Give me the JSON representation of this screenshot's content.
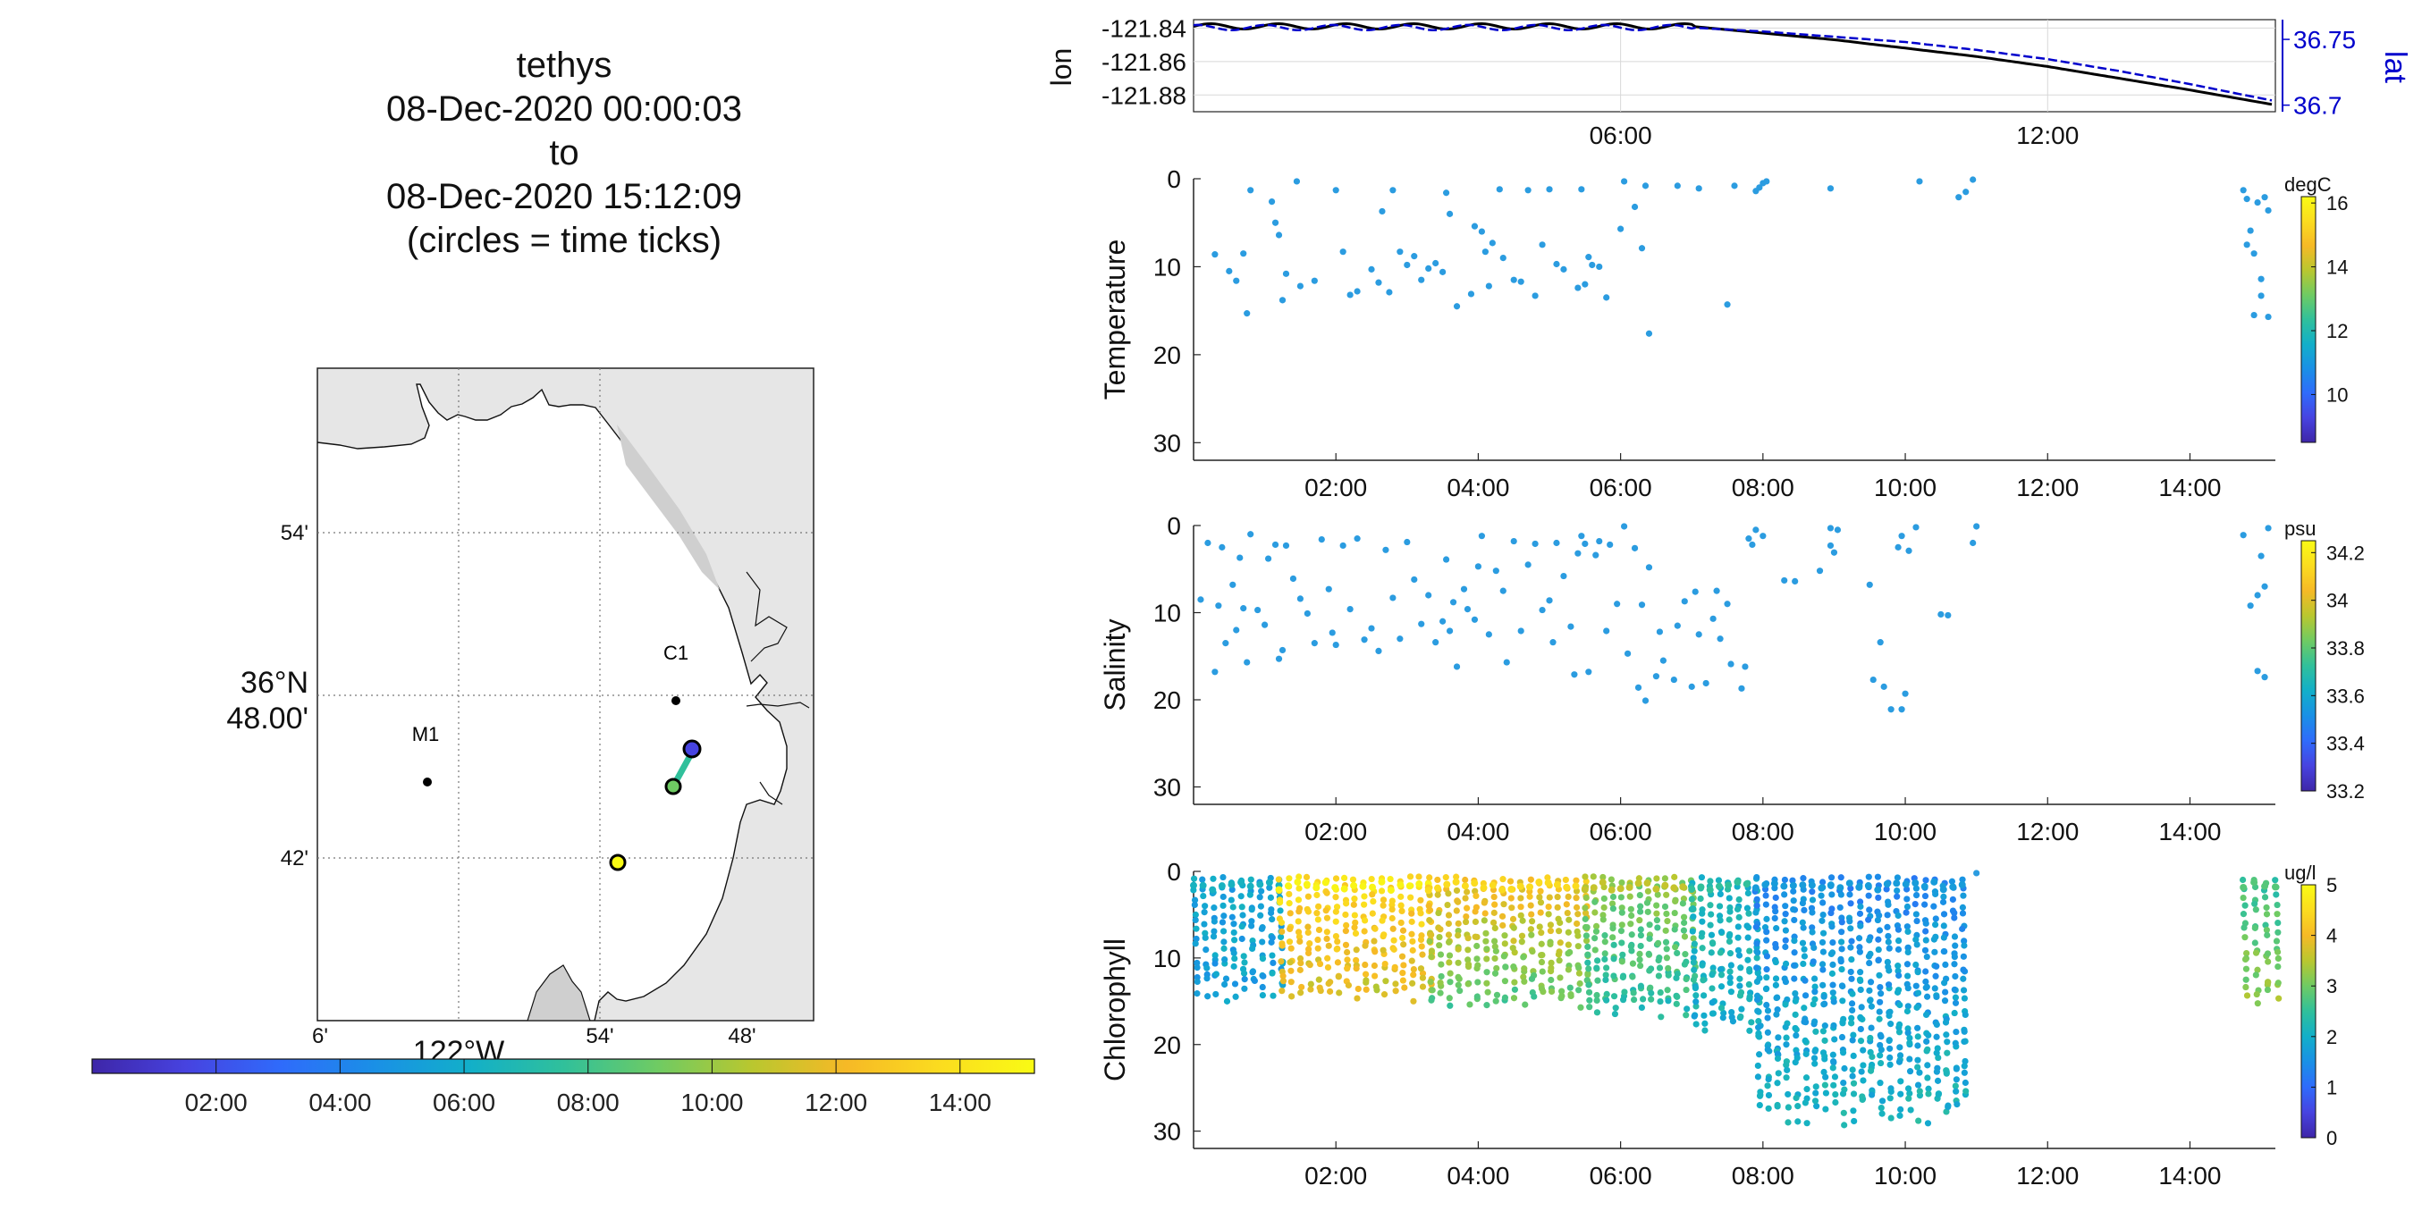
{
  "title_lines": [
    "tethys",
    "08-Dec-2020 00:00:03",
    "to",
    "08-Dec-2020 15:12:09",
    "(circles = time ticks)"
  ],
  "map": {
    "lat_ticks": [
      {
        "value": "54'"
      },
      {
        "value": "36°N 48.00'"
      },
      {
        "value": "42'"
      }
    ],
    "lon_ticks": [
      "6'",
      "54'",
      "48'"
    ],
    "lon_label": "122°W",
    "stations": [
      {
        "name": "C1"
      },
      {
        "name": "M1"
      }
    ]
  },
  "time_colorbar": {
    "ticks": [
      "02:00",
      "04:00",
      "06:00",
      "08:00",
      "10:00",
      "12:00",
      "14:00"
    ],
    "colormap": [
      "#3e26a8",
      "#4743e0",
      "#2f6bfb",
      "#1a90e6",
      "#12afc9",
      "#30c09b",
      "#6fcb63",
      "#b9c72f",
      "#f6b926",
      "#fbdc1f",
      "#f9fb14"
    ]
  },
  "chart_data": [
    {
      "type": "line",
      "title": "",
      "xlabel": "",
      "ylabel": "lon",
      "y2label": "lat",
      "x_ticks": [
        "06:00",
        "12:00"
      ],
      "xlim_hours": [
        0,
        15.2
      ],
      "ylim": [
        -121.89,
        -121.835
      ],
      "y_ticks": [
        -121.84,
        -121.86,
        -121.88
      ],
      "y2lim": [
        36.695,
        36.765
      ],
      "y2_ticks": [
        36.75,
        36.7
      ],
      "series": [
        {
          "name": "lon",
          "color": "#000000",
          "x": [
            0,
            7,
            8,
            9,
            10,
            11,
            12,
            13,
            14,
            15.2
          ],
          "y": [
            -121.839,
            -121.839,
            -121.843,
            -121.847,
            -121.852,
            -121.857,
            -121.863,
            -121.87,
            -121.877,
            -121.886
          ]
        },
        {
          "name": "lat",
          "color": "#0000cc",
          "x": [
            0,
            7,
            8,
            9,
            10,
            11,
            12,
            13,
            14,
            15.2
          ],
          "y": [
            36.759,
            36.759,
            36.756,
            36.752,
            36.748,
            36.742,
            36.735,
            36.726,
            36.716,
            36.703
          ]
        }
      ]
    },
    {
      "type": "scatter",
      "ylabel": "Temperature",
      "unit": "degC",
      "x_ticks": [
        "02:00",
        "04:00",
        "06:00",
        "08:00",
        "10:00",
        "12:00",
        "14:00"
      ],
      "xlim_hours": [
        0,
        15.2
      ],
      "ylim": [
        32,
        0
      ],
      "y_ticks": [
        0,
        10,
        20,
        30
      ],
      "colorbar_ticks": [
        16,
        14,
        12,
        10
      ],
      "colorbar_range": [
        8.5,
        16.2
      ],
      "point_color": "#2b9ce0",
      "points": [
        [
          0.3,
          8.6
        ],
        [
          0.5,
          10.5
        ],
        [
          0.6,
          11.6
        ],
        [
          0.7,
          8.5
        ],
        [
          0.75,
          15.3
        ],
        [
          0.8,
          1.3
        ],
        [
          1.1,
          2.6
        ],
        [
          1.15,
          5
        ],
        [
          1.2,
          6.4
        ],
        [
          1.3,
          10.8
        ],
        [
          1.25,
          13.8
        ],
        [
          1.45,
          0.3
        ],
        [
          1.5,
          12.2
        ],
        [
          1.7,
          11.6
        ],
        [
          2.0,
          1.3
        ],
        [
          2.1,
          8.3
        ],
        [
          2.2,
          13.2
        ],
        [
          2.3,
          12.8
        ],
        [
          2.5,
          10.3
        ],
        [
          2.6,
          11.8
        ],
        [
          2.65,
          3.7
        ],
        [
          2.75,
          12.9
        ],
        [
          2.8,
          1.3
        ],
        [
          2.9,
          8.3
        ],
        [
          3.0,
          9.8
        ],
        [
          3.1,
          8.8
        ],
        [
          3.2,
          11.5
        ],
        [
          3.3,
          10.2
        ],
        [
          3.4,
          9.6
        ],
        [
          3.5,
          10.6
        ],
        [
          3.55,
          1.6
        ],
        [
          3.6,
          4
        ],
        [
          3.7,
          14.5
        ],
        [
          3.9,
          13.1
        ],
        [
          3.95,
          5.4
        ],
        [
          4.05,
          6
        ],
        [
          4.1,
          8.3
        ],
        [
          4.15,
          12.2
        ],
        [
          4.2,
          7.3
        ],
        [
          4.3,
          1.2
        ],
        [
          4.35,
          9
        ],
        [
          4.5,
          11.5
        ],
        [
          4.6,
          11.7
        ],
        [
          4.7,
          1.3
        ],
        [
          4.8,
          13.3
        ],
        [
          4.9,
          7.5
        ],
        [
          5.0,
          1.2
        ],
        [
          5.1,
          9.7
        ],
        [
          5.2,
          10.3
        ],
        [
          5.4,
          12.4
        ],
        [
          5.45,
          1.2
        ],
        [
          5.5,
          12
        ],
        [
          5.55,
          8.9
        ],
        [
          5.6,
          9.8
        ],
        [
          5.7,
          10
        ],
        [
          5.8,
          13.5
        ],
        [
          6.0,
          5.7
        ],
        [
          6.05,
          0.3
        ],
        [
          6.2,
          3.2
        ],
        [
          6.3,
          7.9
        ],
        [
          6.35,
          0.8
        ],
        [
          6.4,
          17.6
        ],
        [
          6.8,
          0.8
        ],
        [
          7.1,
          1.1
        ],
        [
          7.5,
          14.3
        ],
        [
          7.6,
          0.8
        ],
        [
          7.9,
          1.4
        ],
        [
          7.95,
          1
        ],
        [
          8.0,
          0.5
        ],
        [
          8.05,
          0.3
        ],
        [
          8.95,
          1.1
        ],
        [
          10.2,
          0.3
        ],
        [
          10.75,
          2.1
        ],
        [
          10.85,
          1.5
        ],
        [
          10.95,
          0.1
        ],
        [
          14.75,
          1.3
        ],
        [
          14.8,
          2.3
        ],
        [
          14.85,
          5.9
        ],
        [
          14.9,
          8.5
        ],
        [
          14.95,
          2.7
        ],
        [
          15.0,
          11.4
        ],
        [
          15.05,
          2.1
        ],
        [
          15.1,
          3.6
        ],
        [
          14.9,
          15.5
        ],
        [
          15.1,
          15.7
        ],
        [
          14.8,
          7.5
        ],
        [
          15.0,
          13.3
        ]
      ]
    },
    {
      "type": "scatter",
      "ylabel": "Salinity",
      "unit": "psu",
      "x_ticks": [
        "02:00",
        "04:00",
        "06:00",
        "08:00",
        "10:00",
        "12:00",
        "14:00"
      ],
      "xlim_hours": [
        0,
        15.2
      ],
      "ylim": [
        32,
        0
      ],
      "y_ticks": [
        0,
        10,
        20,
        30
      ],
      "colorbar_ticks": [
        34.2,
        34,
        33.8,
        33.6,
        33.4,
        33.2
      ],
      "colorbar_range": [
        33.2,
        34.25
      ],
      "point_color": "#2b9ce0",
      "points": [
        [
          0.1,
          8.5
        ],
        [
          0.2,
          2
        ],
        [
          0.3,
          16.8
        ],
        [
          0.35,
          9.2
        ],
        [
          0.4,
          2.5
        ],
        [
          0.45,
          13.5
        ],
        [
          0.55,
          6.8
        ],
        [
          0.6,
          12
        ],
        [
          0.65,
          3.7
        ],
        [
          0.7,
          9.5
        ],
        [
          0.75,
          15.7
        ],
        [
          0.8,
          1
        ],
        [
          0.9,
          9.7
        ],
        [
          1.0,
          11.4
        ],
        [
          1.05,
          3.8
        ],
        [
          1.15,
          2.2
        ],
        [
          1.2,
          15.3
        ],
        [
          1.25,
          14.3
        ],
        [
          1.3,
          2.3
        ],
        [
          1.4,
          6.1
        ],
        [
          1.5,
          8.4
        ],
        [
          1.6,
          10.1
        ],
        [
          1.7,
          13.5
        ],
        [
          1.8,
          1.6
        ],
        [
          1.9,
          7.3
        ],
        [
          1.95,
          12.3
        ],
        [
          2.0,
          13.7
        ],
        [
          2.1,
          2.3
        ],
        [
          2.2,
          9.6
        ],
        [
          2.3,
          1.5
        ],
        [
          2.4,
          13.1
        ],
        [
          2.5,
          11.8
        ],
        [
          2.6,
          14.4
        ],
        [
          2.7,
          2.8
        ],
        [
          2.8,
          8.3
        ],
        [
          2.9,
          13
        ],
        [
          3.0,
          1.9
        ],
        [
          3.1,
          6.2
        ],
        [
          3.2,
          11.3
        ],
        [
          3.3,
          8
        ],
        [
          3.4,
          13.4
        ],
        [
          3.5,
          11
        ],
        [
          3.55,
          3.9
        ],
        [
          3.6,
          12.1
        ],
        [
          3.65,
          8.8
        ],
        [
          3.7,
          16.2
        ],
        [
          3.8,
          7.3
        ],
        [
          3.85,
          9.6
        ],
        [
          3.95,
          10.8
        ],
        [
          4.0,
          4.7
        ],
        [
          4.05,
          1.2
        ],
        [
          4.15,
          12.5
        ],
        [
          4.25,
          5.2
        ],
        [
          4.35,
          7.5
        ],
        [
          4.4,
          15.7
        ],
        [
          4.5,
          1.8
        ],
        [
          4.6,
          12.1
        ],
        [
          4.7,
          4.5
        ],
        [
          4.8,
          2.1
        ],
        [
          4.9,
          9.7
        ],
        [
          5.0,
          8.6
        ],
        [
          5.05,
          13.4
        ],
        [
          5.1,
          2
        ],
        [
          5.2,
          5.8
        ],
        [
          5.3,
          11.6
        ],
        [
          5.35,
          17.1
        ],
        [
          5.4,
          3.2
        ],
        [
          5.45,
          1.2
        ],
        [
          5.5,
          2.1
        ],
        [
          5.55,
          16.8
        ],
        [
          5.65,
          3.4
        ],
        [
          5.7,
          1.8
        ],
        [
          5.8,
          12.1
        ],
        [
          5.85,
          2.2
        ],
        [
          5.95,
          9
        ],
        [
          6.05,
          0.1
        ],
        [
          6.1,
          14.7
        ],
        [
          6.2,
          2.6
        ],
        [
          6.25,
          18.6
        ],
        [
          6.3,
          9.1
        ],
        [
          6.35,
          20.1
        ],
        [
          6.4,
          4.8
        ],
        [
          6.5,
          17.3
        ],
        [
          6.55,
          12.2
        ],
        [
          6.6,
          15.5
        ],
        [
          6.75,
          17.7
        ],
        [
          6.8,
          11.5
        ],
        [
          6.9,
          8.7
        ],
        [
          7.0,
          18.5
        ],
        [
          7.05,
          7.6
        ],
        [
          7.1,
          12.5
        ],
        [
          7.2,
          18.1
        ],
        [
          7.3,
          10.7
        ],
        [
          7.35,
          7.5
        ],
        [
          7.4,
          13
        ],
        [
          7.5,
          9
        ],
        [
          7.55,
          15.9
        ],
        [
          7.7,
          18.7
        ],
        [
          7.75,
          16.2
        ],
        [
          7.8,
          1.5
        ],
        [
          7.85,
          2.2
        ],
        [
          7.9,
          0.5
        ],
        [
          8.0,
          1.2
        ],
        [
          8.3,
          6.3
        ],
        [
          8.45,
          6.4
        ],
        [
          8.8,
          5.2
        ],
        [
          8.95,
          2.3
        ],
        [
          8.95,
          0.3
        ],
        [
          9.0,
          3.1
        ],
        [
          9.05,
          0.5
        ],
        [
          9.5,
          6.8
        ],
        [
          9.55,
          17.7
        ],
        [
          9.65,
          13.4
        ],
        [
          9.7,
          18.5
        ],
        [
          9.8,
          21.1
        ],
        [
          9.95,
          21.1
        ],
        [
          9.9,
          2.5
        ],
        [
          9.95,
          1.2
        ],
        [
          10.0,
          19.3
        ],
        [
          10.05,
          2.9
        ],
        [
          10.15,
          0.2
        ],
        [
          10.5,
          10.2
        ],
        [
          10.6,
          10.3
        ],
        [
          10.95,
          2
        ],
        [
          11.0,
          0.1
        ],
        [
          14.75,
          1.1
        ],
        [
          14.85,
          9.2
        ],
        [
          14.95,
          8
        ],
        [
          15.05,
          7
        ],
        [
          14.95,
          16.7
        ],
        [
          15.05,
          17.4
        ],
        [
          15.1,
          0.3
        ],
        [
          15.0,
          3.5
        ]
      ]
    },
    {
      "type": "scatter",
      "ylabel": "Chlorophyll",
      "unit": "ug/l",
      "x_ticks": [
        "02:00",
        "04:00",
        "06:00",
        "08:00",
        "10:00",
        "12:00",
        "14:00"
      ],
      "xlim_hours": [
        0,
        15.2
      ],
      "ylim": [
        32,
        0
      ],
      "y_ticks": [
        0,
        10,
        20,
        30
      ],
      "colorbar_ticks": [
        5,
        4,
        3,
        2,
        1,
        0
      ],
      "colorbar_range": [
        0,
        5
      ],
      "profiles": [
        {
          "x": [
            0,
            1.2
          ],
          "max_depth": 16,
          "chl_surface": 1.8,
          "chl_deep": 1.8
        },
        {
          "x": [
            1.2,
            3.3
          ],
          "max_depth": 16,
          "chl_surface": 4.6,
          "chl_deep": 3.6
        },
        {
          "x": [
            3.3,
            5.5
          ],
          "max_depth": 17,
          "chl_surface": 4.2,
          "chl_deep": 2.6
        },
        {
          "x": [
            5.5,
            7.0
          ],
          "max_depth": 18,
          "chl_surface": 3.3,
          "chl_deep": 2.2
        },
        {
          "x": [
            7.0,
            7.9
          ],
          "max_depth": 20,
          "chl_surface": 2.2,
          "chl_deep": 2.0
        },
        {
          "x": [
            7.9,
            10.8
          ],
          "max_depth": 30.5,
          "chl_surface": 1.4,
          "chl_deep": 2.2
        },
        {
          "x": [
            14.75,
            15.2
          ],
          "max_depth": 17,
          "chl_surface": 2.5,
          "chl_deep": 3.4
        }
      ],
      "isolated_points": [
        [
          11.0,
          0.1
        ]
      ]
    }
  ]
}
